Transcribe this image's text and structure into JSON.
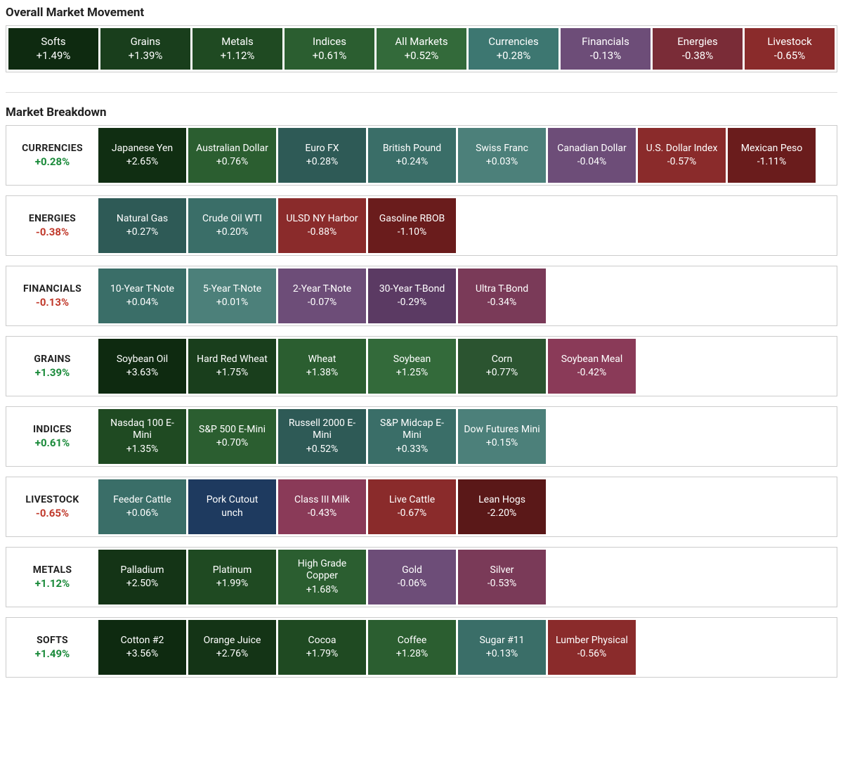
{
  "colors": {
    "green_darkest": "#0e2a10",
    "green_dark": "#1c4420",
    "green_mid": "#2b5e30",
    "green_light": "#3b6d43",
    "teal_dark": "#2e5a56",
    "teal_mid": "#3d7771",
    "teal_light": "#4c807a",
    "purple_dark": "#5b3a63",
    "purple_mid": "#6d4d78",
    "maroon_dark": "#5a1818",
    "maroon_mid": "#7a2626",
    "red": "#a13232",
    "navy": "#1e3a5f"
  },
  "headings": {
    "overall": "Overall Market Movement",
    "breakdown": "Market Breakdown"
  },
  "overall": [
    {
      "name": "Softs",
      "value": "+1.49%",
      "color": "#0e2a10"
    },
    {
      "name": "Grains",
      "value": "+1.39%",
      "color": "#193e1c"
    },
    {
      "name": "Metals",
      "value": "+1.12%",
      "color": "#1f4a22"
    },
    {
      "name": "Indices",
      "value": "+0.61%",
      "color": "#2b5e30"
    },
    {
      "name": "All Markets",
      "value": "+0.52%",
      "color": "#336a3a"
    },
    {
      "name": "Currencies",
      "value": "+0.28%",
      "color": "#3d7771"
    },
    {
      "name": "Financials",
      "value": "-0.13%",
      "color": "#6d4d78"
    },
    {
      "name": "Energies",
      "value": "-0.38%",
      "color": "#7a2c37"
    },
    {
      "name": "Livestock",
      "value": "-0.65%",
      "color": "#8a2b2b"
    }
  ],
  "groups": [
    {
      "name": "CURRENCIES",
      "value": "+0.28%",
      "dir": "pos",
      "items": [
        {
          "name": "Japanese Yen",
          "value": "+2.65%",
          "color": "#102e12"
        },
        {
          "name": "Australian Dollar",
          "value": "+0.76%",
          "color": "#2b5e30"
        },
        {
          "name": "Euro FX",
          "value": "+0.28%",
          "color": "#2e5a56"
        },
        {
          "name": "British Pound",
          "value": "+0.24%",
          "color": "#3a6e68"
        },
        {
          "name": "Swiss Franc",
          "value": "+0.03%",
          "color": "#4c807a"
        },
        {
          "name": "Canadian Dollar",
          "value": "-0.04%",
          "color": "#6d4d78"
        },
        {
          "name": "U.S. Dollar Index",
          "value": "-0.57%",
          "color": "#8a2b2b"
        },
        {
          "name": "Mexican Peso",
          "value": "-1.11%",
          "color": "#6a1c1c"
        }
      ]
    },
    {
      "name": "ENERGIES",
      "value": "-0.38%",
      "dir": "neg",
      "items": [
        {
          "name": "Natural Gas",
          "value": "+0.27%",
          "color": "#2e5a56"
        },
        {
          "name": "Crude Oil WTI",
          "value": "+0.20%",
          "color": "#3a6e68"
        },
        {
          "name": "ULSD NY Harbor",
          "value": "-0.88%",
          "color": "#8a2b2b"
        },
        {
          "name": "Gasoline RBOB",
          "value": "-1.10%",
          "color": "#6a1c1c"
        }
      ]
    },
    {
      "name": "FINANCIALS",
      "value": "-0.13%",
      "dir": "neg",
      "items": [
        {
          "name": "10-Year T-Note",
          "value": "+0.04%",
          "color": "#3a6e68"
        },
        {
          "name": "5-Year T-Note",
          "value": "+0.01%",
          "color": "#4c807a"
        },
        {
          "name": "2-Year T-Note",
          "value": "-0.07%",
          "color": "#6d4d78"
        },
        {
          "name": "30-Year T-Bond",
          "value": "-0.29%",
          "color": "#5b3a63"
        },
        {
          "name": "Ultra T-Bond",
          "value": "-0.34%",
          "color": "#7a3a58"
        }
      ]
    },
    {
      "name": "GRAINS",
      "value": "+1.39%",
      "dir": "pos",
      "items": [
        {
          "name": "Soybean Oil",
          "value": "+3.63%",
          "color": "#0e2a10"
        },
        {
          "name": "Hard Red Wheat",
          "value": "+1.75%",
          "color": "#193e1c"
        },
        {
          "name": "Wheat",
          "value": "+1.38%",
          "color": "#2b5e30"
        },
        {
          "name": "Soybean",
          "value": "+1.25%",
          "color": "#336a3a"
        },
        {
          "name": "Corn",
          "value": "+0.77%",
          "color": "#2b5430"
        },
        {
          "name": "Soybean Meal",
          "value": "-0.42%",
          "color": "#8a3a58"
        }
      ]
    },
    {
      "name": "INDICES",
      "value": "+0.61%",
      "dir": "pos",
      "items": [
        {
          "name": "Nasdaq 100 E-Mini",
          "value": "+1.35%",
          "color": "#1f4a22"
        },
        {
          "name": "S&P 500 E-Mini",
          "value": "+0.70%",
          "color": "#2b5e30"
        },
        {
          "name": "Russell 2000 E-Mini",
          "value": "+0.52%",
          "color": "#2e5a56"
        },
        {
          "name": "S&P Midcap E-Mini",
          "value": "+0.33%",
          "color": "#3a6e68"
        },
        {
          "name": "Dow Futures Mini",
          "value": "+0.15%",
          "color": "#4c807a"
        }
      ]
    },
    {
      "name": "LIVESTOCK",
      "value": "-0.65%",
      "dir": "neg",
      "items": [
        {
          "name": "Feeder Cattle",
          "value": "+0.06%",
          "color": "#3a6e68"
        },
        {
          "name": "Pork Cutout",
          "value": "unch",
          "color": "#1e3a5f"
        },
        {
          "name": "Class III Milk",
          "value": "-0.43%",
          "color": "#8a3a58"
        },
        {
          "name": "Live Cattle",
          "value": "-0.67%",
          "color": "#8a2b2b"
        },
        {
          "name": "Lean Hogs",
          "value": "-2.20%",
          "color": "#5a1818"
        }
      ]
    },
    {
      "name": "METALS",
      "value": "+1.12%",
      "dir": "pos",
      "items": [
        {
          "name": "Palladium",
          "value": "+2.50%",
          "color": "#143416"
        },
        {
          "name": "Platinum",
          "value": "+1.99%",
          "color": "#1f4a22"
        },
        {
          "name": "High Grade Copper",
          "value": "+1.68%",
          "color": "#2b5e30"
        },
        {
          "name": "Gold",
          "value": "-0.06%",
          "color": "#6d4d78"
        },
        {
          "name": "Silver",
          "value": "-0.53%",
          "color": "#7a3a58"
        }
      ]
    },
    {
      "name": "SOFTS",
      "value": "+1.49%",
      "dir": "pos",
      "items": [
        {
          "name": "Cotton #2",
          "value": "+3.56%",
          "color": "#0e2a10"
        },
        {
          "name": "Orange Juice",
          "value": "+2.76%",
          "color": "#143416"
        },
        {
          "name": "Cocoa",
          "value": "+1.79%",
          "color": "#1f4a22"
        },
        {
          "name": "Coffee",
          "value": "+1.28%",
          "color": "#2b5e30"
        },
        {
          "name": "Sugar #11",
          "value": "+0.13%",
          "color": "#3a6e68"
        },
        {
          "name": "Lumber Physical",
          "value": "-0.56%",
          "color": "#8a2b2b"
        }
      ]
    }
  ]
}
